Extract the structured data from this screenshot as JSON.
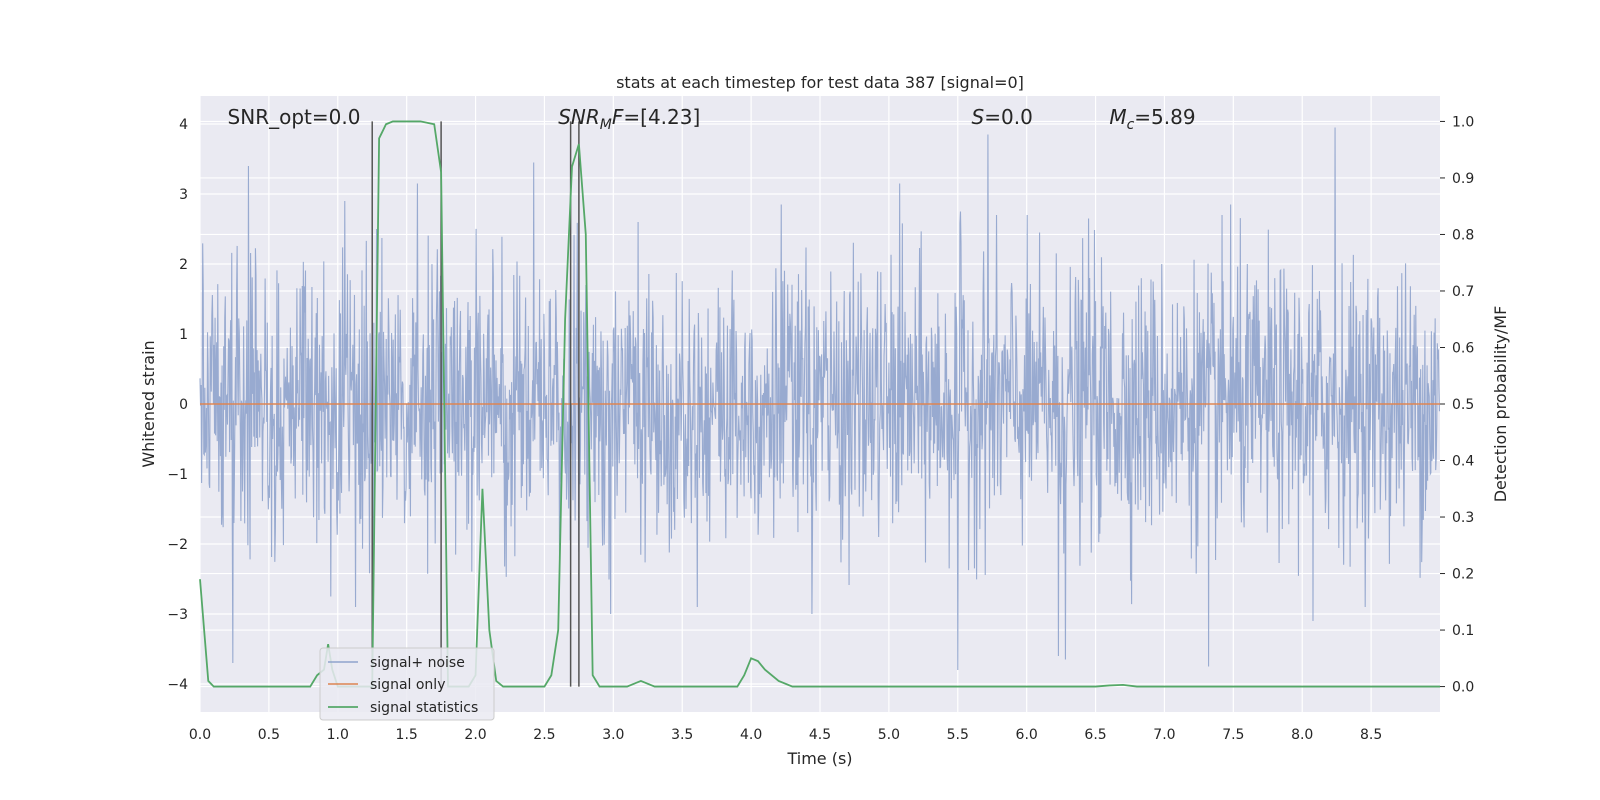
{
  "chart_data": {
    "type": "line",
    "title": "stats at each timestep for test data 387 [signal=0]",
    "xlabel": "Time (s)",
    "ylabel_left": "Whitened strain",
    "ylabel_right": "Detection probability/MF",
    "xlim": [
      0.0,
      9.0
    ],
    "ylim_left": [
      -4.4,
      4.4
    ],
    "ylim_right": [
      -0.045,
      1.045
    ],
    "x_ticks": [
      "0.0",
      "0.5",
      "1.0",
      "1.5",
      "2.0",
      "2.5",
      "3.0",
      "3.5",
      "4.0",
      "4.5",
      "5.0",
      "5.5",
      "6.0",
      "6.5",
      "7.0",
      "7.5",
      "8.0",
      "8.5"
    ],
    "y_left_ticks": [
      "4",
      "3",
      "2",
      "1",
      "0",
      "−1",
      "−2",
      "−3",
      "−4"
    ],
    "y_right_ticks": [
      "1.0",
      "0.9",
      "0.8",
      "0.7",
      "0.6",
      "0.5",
      "0.4",
      "0.3",
      "0.2",
      "0.1",
      "0.0"
    ],
    "grid": true,
    "legend_position": "lower-left",
    "annotations": {
      "snr_opt": {
        "text": "SNR_opt=0.0",
        "x": 0.2
      },
      "snr_mf": {
        "base": "SNR",
        "sub": "M",
        "rest": "F=[4.23]",
        "x": 2.6
      },
      "s": {
        "base": "S",
        "rest": "=0.0",
        "x": 5.6
      },
      "mc": {
        "base": "M",
        "sub": "c",
        "rest": "=5.89",
        "x": 6.6
      }
    },
    "vertical_lines": [
      1.25,
      1.75,
      2.69,
      2.75
    ],
    "series": [
      {
        "name": "signal+ noise",
        "color": "#8fa3cc",
        "kind": "noise",
        "sample_rate": 256,
        "duration": 9.0,
        "sigma": 1.0,
        "peaks": [
          [
            0.35,
            3.4
          ],
          [
            1.05,
            2.9
          ],
          [
            1.28,
            2.5
          ],
          [
            1.58,
            3.15
          ],
          [
            2.42,
            3.45
          ],
          [
            3.18,
            2.6
          ],
          [
            4.22,
            2.85
          ],
          [
            5.08,
            3.15
          ],
          [
            5.52,
            2.75
          ],
          [
            5.72,
            3.85
          ],
          [
            6.45,
            2.65
          ],
          [
            7.48,
            2.85
          ],
          [
            8.24,
            3.95
          ],
          [
            0.24,
            -3.7
          ],
          [
            0.95,
            -2.75
          ],
          [
            2.98,
            -3.0
          ],
          [
            4.44,
            -3.0
          ],
          [
            5.5,
            -3.8
          ],
          [
            6.23,
            -3.6
          ],
          [
            6.28,
            -3.65
          ],
          [
            7.32,
            -3.75
          ],
          [
            8.08,
            -3.1
          ]
        ]
      },
      {
        "name": "signal only",
        "color": "#dd8452",
        "kind": "flat",
        "value": 0.0
      },
      {
        "name": "signal statistics",
        "color": "#55a868",
        "kind": "probability",
        "x": [
          0.0,
          0.06,
          0.1,
          0.2,
          0.3,
          0.4,
          0.5,
          0.6,
          0.7,
          0.8,
          0.85,
          0.9,
          0.93,
          0.96,
          1.0,
          1.05,
          1.1,
          1.15,
          1.2,
          1.25,
          1.3,
          1.35,
          1.4,
          1.5,
          1.6,
          1.7,
          1.75,
          1.8,
          1.85,
          1.9,
          1.95,
          2.0,
          2.05,
          2.1,
          2.15,
          2.2,
          2.3,
          2.4,
          2.5,
          2.55,
          2.6,
          2.65,
          2.7,
          2.75,
          2.8,
          2.85,
          2.9,
          2.95,
          3.0,
          3.1,
          3.2,
          3.3,
          3.5,
          3.7,
          3.9,
          3.95,
          4.0,
          4.05,
          4.1,
          4.2,
          4.3,
          4.5,
          5.0,
          5.5,
          6.0,
          6.5,
          6.6,
          6.7,
          6.8,
          7.0,
          7.5,
          8.0,
          8.5,
          9.0
        ],
        "y": [
          0.19,
          0.01,
          0.0,
          0.0,
          0.0,
          0.0,
          0.0,
          0.0,
          0.0,
          0.0,
          0.02,
          0.03,
          0.075,
          0.03,
          0.0,
          0.0,
          0.0,
          0.0,
          0.0,
          0.0,
          0.97,
          0.995,
          1.0,
          1.0,
          1.0,
          0.995,
          0.91,
          0.0,
          0.0,
          0.0,
          0.0,
          0.02,
          0.35,
          0.1,
          0.01,
          0.0,
          0.0,
          0.0,
          0.0,
          0.02,
          0.1,
          0.65,
          0.92,
          0.96,
          0.8,
          0.02,
          0.0,
          0.0,
          0.0,
          0.0,
          0.01,
          0.0,
          0.0,
          0.0,
          0.0,
          0.02,
          0.05,
          0.045,
          0.03,
          0.01,
          0.0,
          0.0,
          0.0,
          0.0,
          0.0,
          0.0,
          0.002,
          0.003,
          0.0,
          0.0,
          0.0,
          0.0,
          0.0,
          0.0
        ]
      }
    ]
  }
}
